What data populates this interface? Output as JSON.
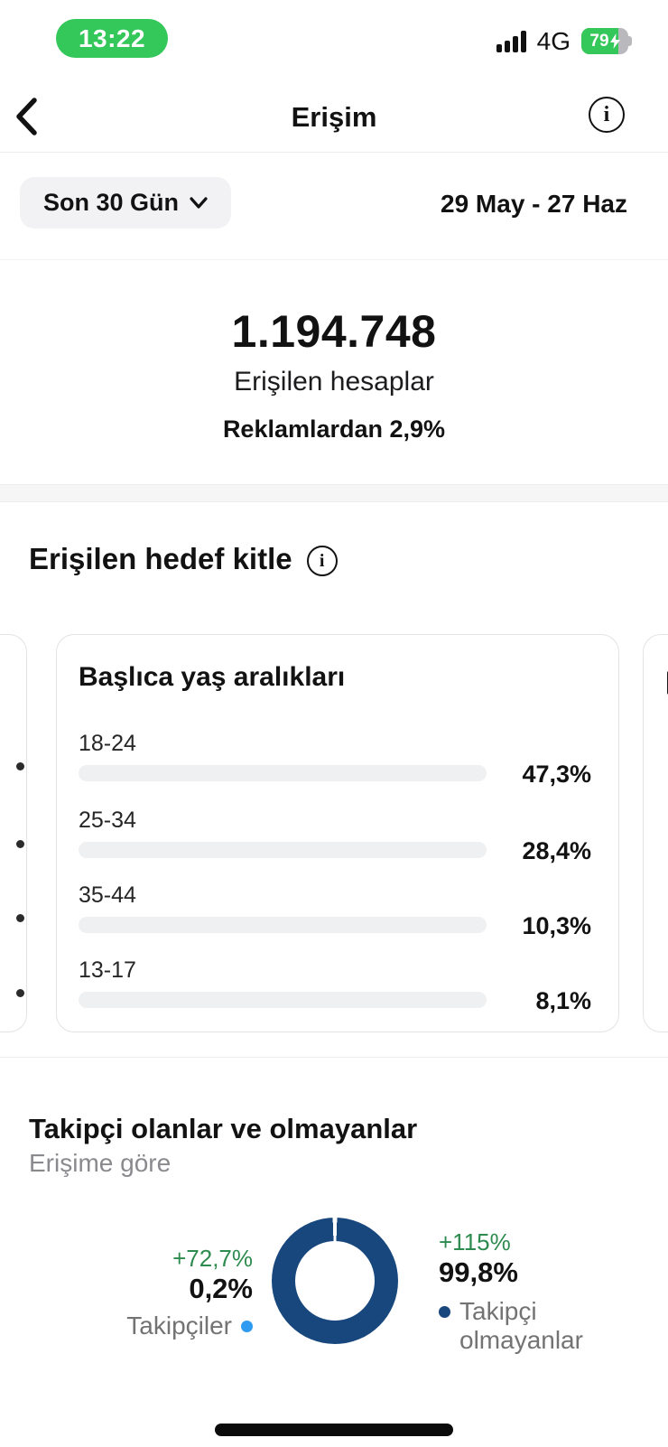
{
  "status_bar": {
    "time": "13:22",
    "network": "4G",
    "battery_percent": "79",
    "charging": true
  },
  "header": {
    "title": "Erişim"
  },
  "filter": {
    "range_label": "Son 30 Gün",
    "date_range": "29 May - 27 Haz"
  },
  "summary": {
    "value": "1.194.748",
    "label": "Erişilen hesaplar",
    "ads_note": "Reklamlardan 2,9%"
  },
  "audience_section": {
    "title": "Erişilen hedef kitle"
  },
  "age_card": {
    "title": "Başlıca yaş aralıkları",
    "rows": [
      {
        "label": "18-24",
        "value": "47,3%",
        "pct": 47.3
      },
      {
        "label": "25-34",
        "value": "28,4%",
        "pct": 28.4
      },
      {
        "label": "35-44",
        "value": "10,3%",
        "pct": 10.3
      },
      {
        "label": "13-17",
        "value": "8,1%",
        "pct": 8.1
      }
    ]
  },
  "followers_section": {
    "title": "Takipçi olanlar ve olmayanlar",
    "subtitle": "Erişime göre",
    "followers": {
      "change": "+72,7%",
      "value": "0,2%",
      "label": "Takipçiler"
    },
    "non_followers": {
      "change": "+115%",
      "value": "99,8%",
      "label_line1": "Takipçi",
      "label_line2": "olmayanlar"
    }
  },
  "colors": {
    "accent_blue": "#2f9bf0",
    "navy": "#17477c",
    "green_positive": "#2e8b4f",
    "status_green": "#34c759",
    "track_gray": "#eff0f1"
  },
  "chart_data": [
    {
      "type": "bar",
      "title": "Başlıca yaş aralıkları",
      "categories": [
        "18-24",
        "25-34",
        "35-44",
        "13-17"
      ],
      "values": [
        47.3,
        28.4,
        10.3,
        8.1
      ],
      "xlabel": "",
      "ylabel": "",
      "xlim": [
        0,
        100
      ],
      "orientation": "horizontal",
      "value_labels": [
        "47,3%",
        "28,4%",
        "10,3%",
        "8,1%"
      ]
    },
    {
      "type": "pie",
      "title": "Takipçi olanlar ve olmayanlar",
      "subtitle": "Erişime göre",
      "labels": [
        "Takipçiler",
        "Takipçi olmayanlar"
      ],
      "values": [
        0.2,
        99.8
      ],
      "value_labels": [
        "0,2%",
        "99,8%"
      ],
      "changes": [
        "+72,7%",
        "+115%"
      ],
      "colors": [
        "#2f9bf0",
        "#17477c"
      ],
      "donut": true,
      "legend_position": "sides"
    }
  ]
}
